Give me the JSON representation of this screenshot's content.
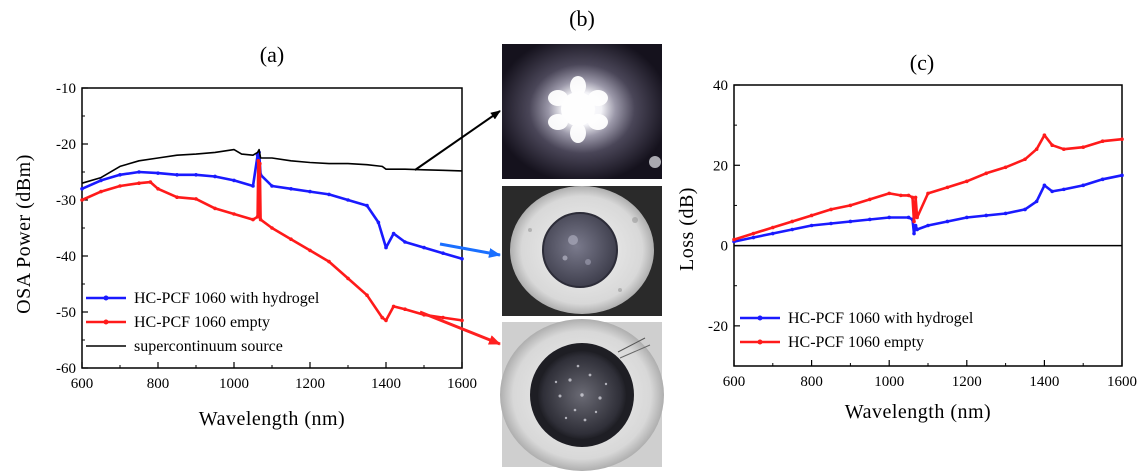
{
  "chart_data": [
    {
      "panel_label": "(a)",
      "type": "line",
      "xlabel": "Wavelength (nm)",
      "ylabel": "OSA Power (dBm)",
      "xlim": [
        600,
        1600
      ],
      "ylim": [
        -60,
        -10
      ],
      "x_ticks": [
        "600",
        "800",
        "1000",
        "1200",
        "1400",
        "1600"
      ],
      "y_ticks": [
        "-60",
        "-50",
        "-40",
        "-30",
        "-20",
        "-10"
      ],
      "legend_position": "bottom-left",
      "series": [
        {
          "name": "HC-PCF 1060 with hydrogel",
          "color": "#1a1aff",
          "marker": "dot",
          "x": [
            600,
            650,
            700,
            750,
            800,
            850,
            900,
            950,
            1000,
            1050,
            1062,
            1066,
            1070,
            1100,
            1150,
            1200,
            1250,
            1300,
            1350,
            1380,
            1400,
            1420,
            1450,
            1500,
            1550,
            1600
          ],
          "y": [
            -28,
            -26.5,
            -25.5,
            -25,
            -25.2,
            -25.5,
            -25.5,
            -25.8,
            -26.5,
            -27.5,
            -22,
            -21.5,
            -25.5,
            -27.5,
            -28,
            -28.5,
            -29,
            -30,
            -31,
            -34,
            -38.5,
            -36,
            -37.5,
            -38.5,
            -39.5,
            -40.5
          ]
        },
        {
          "name": "HC-PCF 1060 empty",
          "color": "#ff1a1a",
          "marker": "dot",
          "x": [
            600,
            650,
            700,
            750,
            780,
            800,
            850,
            900,
            950,
            1000,
            1050,
            1062,
            1064,
            1066,
            1068,
            1070,
            1100,
            1150,
            1200,
            1250,
            1300,
            1350,
            1390,
            1400,
            1420,
            1450,
            1500,
            1550,
            1600
          ],
          "y": [
            -30,
            -28.5,
            -27.5,
            -27,
            -26.8,
            -28,
            -29.5,
            -29.8,
            -31.5,
            -32.5,
            -33.5,
            -33,
            -23,
            -33,
            -23.5,
            -33.5,
            -35,
            -37,
            -39,
            -41,
            -44,
            -47,
            -51,
            -51.5,
            -49,
            -49.5,
            -50.5,
            -51,
            -51.5
          ]
        },
        {
          "name": "supercontinuum source",
          "color": "#000000",
          "marker": "none",
          "x": [
            600,
            650,
            700,
            750,
            800,
            850,
            900,
            950,
            1000,
            1020,
            1050,
            1062,
            1066,
            1070,
            1100,
            1150,
            1200,
            1250,
            1300,
            1350,
            1390,
            1400,
            1420,
            1450,
            1500,
            1550,
            1600
          ],
          "y": [
            -27,
            -26,
            -24,
            -23,
            -22.5,
            -22,
            -21.8,
            -21.5,
            -21,
            -21.8,
            -22,
            -21.5,
            -21,
            -22.5,
            -22.5,
            -23,
            -23.3,
            -23.5,
            -23.5,
            -23.7,
            -24,
            -24.5,
            -24.5,
            -24.5,
            -24.6,
            -24.7,
            -24.8
          ]
        }
      ]
    },
    {
      "panel_label": "(b)",
      "type": "image-panel",
      "images": [
        "mode-field-image",
        "fiber-with-hydrogel-image",
        "fiber-empty-image"
      ]
    },
    {
      "panel_label": "(c)",
      "type": "line",
      "xlabel": "Wavelength (nm)",
      "ylabel": "Loss (dB)",
      "xlim": [
        600,
        1600
      ],
      "ylim": [
        -30,
        40
      ],
      "x_ticks": [
        "600",
        "800",
        "1000",
        "1200",
        "1400",
        "1600"
      ],
      "y_ticks": [
        "-20",
        "0",
        "20",
        "40"
      ],
      "legend_position": "bottom-left",
      "series": [
        {
          "name": "HC-PCF 1060 with hydrogel",
          "color": "#1a1aff",
          "marker": "dot",
          "x": [
            600,
            650,
            700,
            750,
            800,
            850,
            900,
            950,
            1000,
            1050,
            1060,
            1064,
            1068,
            1072,
            1100,
            1150,
            1200,
            1250,
            1300,
            1350,
            1380,
            1400,
            1420,
            1450,
            1500,
            1550,
            1600
          ],
          "y": [
            1,
            2,
            3,
            4,
            5,
            5.5,
            6,
            6.5,
            7,
            7,
            6.5,
            3,
            5,
            4,
            5,
            6,
            7,
            7.5,
            8,
            9,
            11,
            15,
            13.5,
            14,
            15,
            16.5,
            17.5
          ]
        },
        {
          "name": "HC-PCF 1060 empty",
          "color": "#ff1a1a",
          "marker": "dot",
          "x": [
            600,
            650,
            700,
            750,
            800,
            850,
            900,
            950,
            1000,
            1030,
            1050,
            1060,
            1064,
            1068,
            1072,
            1100,
            1150,
            1200,
            1250,
            1300,
            1350,
            1380,
            1400,
            1420,
            1450,
            1500,
            1550,
            1600
          ],
          "y": [
            1.5,
            3,
            4.5,
            6,
            7.5,
            9,
            10,
            11.5,
            13,
            12.5,
            12.5,
            12,
            6,
            12,
            7,
            13,
            14.5,
            16,
            18,
            19.5,
            21.5,
            24,
            27.5,
            25,
            24,
            24.5,
            26,
            26.5
          ]
        }
      ]
    }
  ]
}
